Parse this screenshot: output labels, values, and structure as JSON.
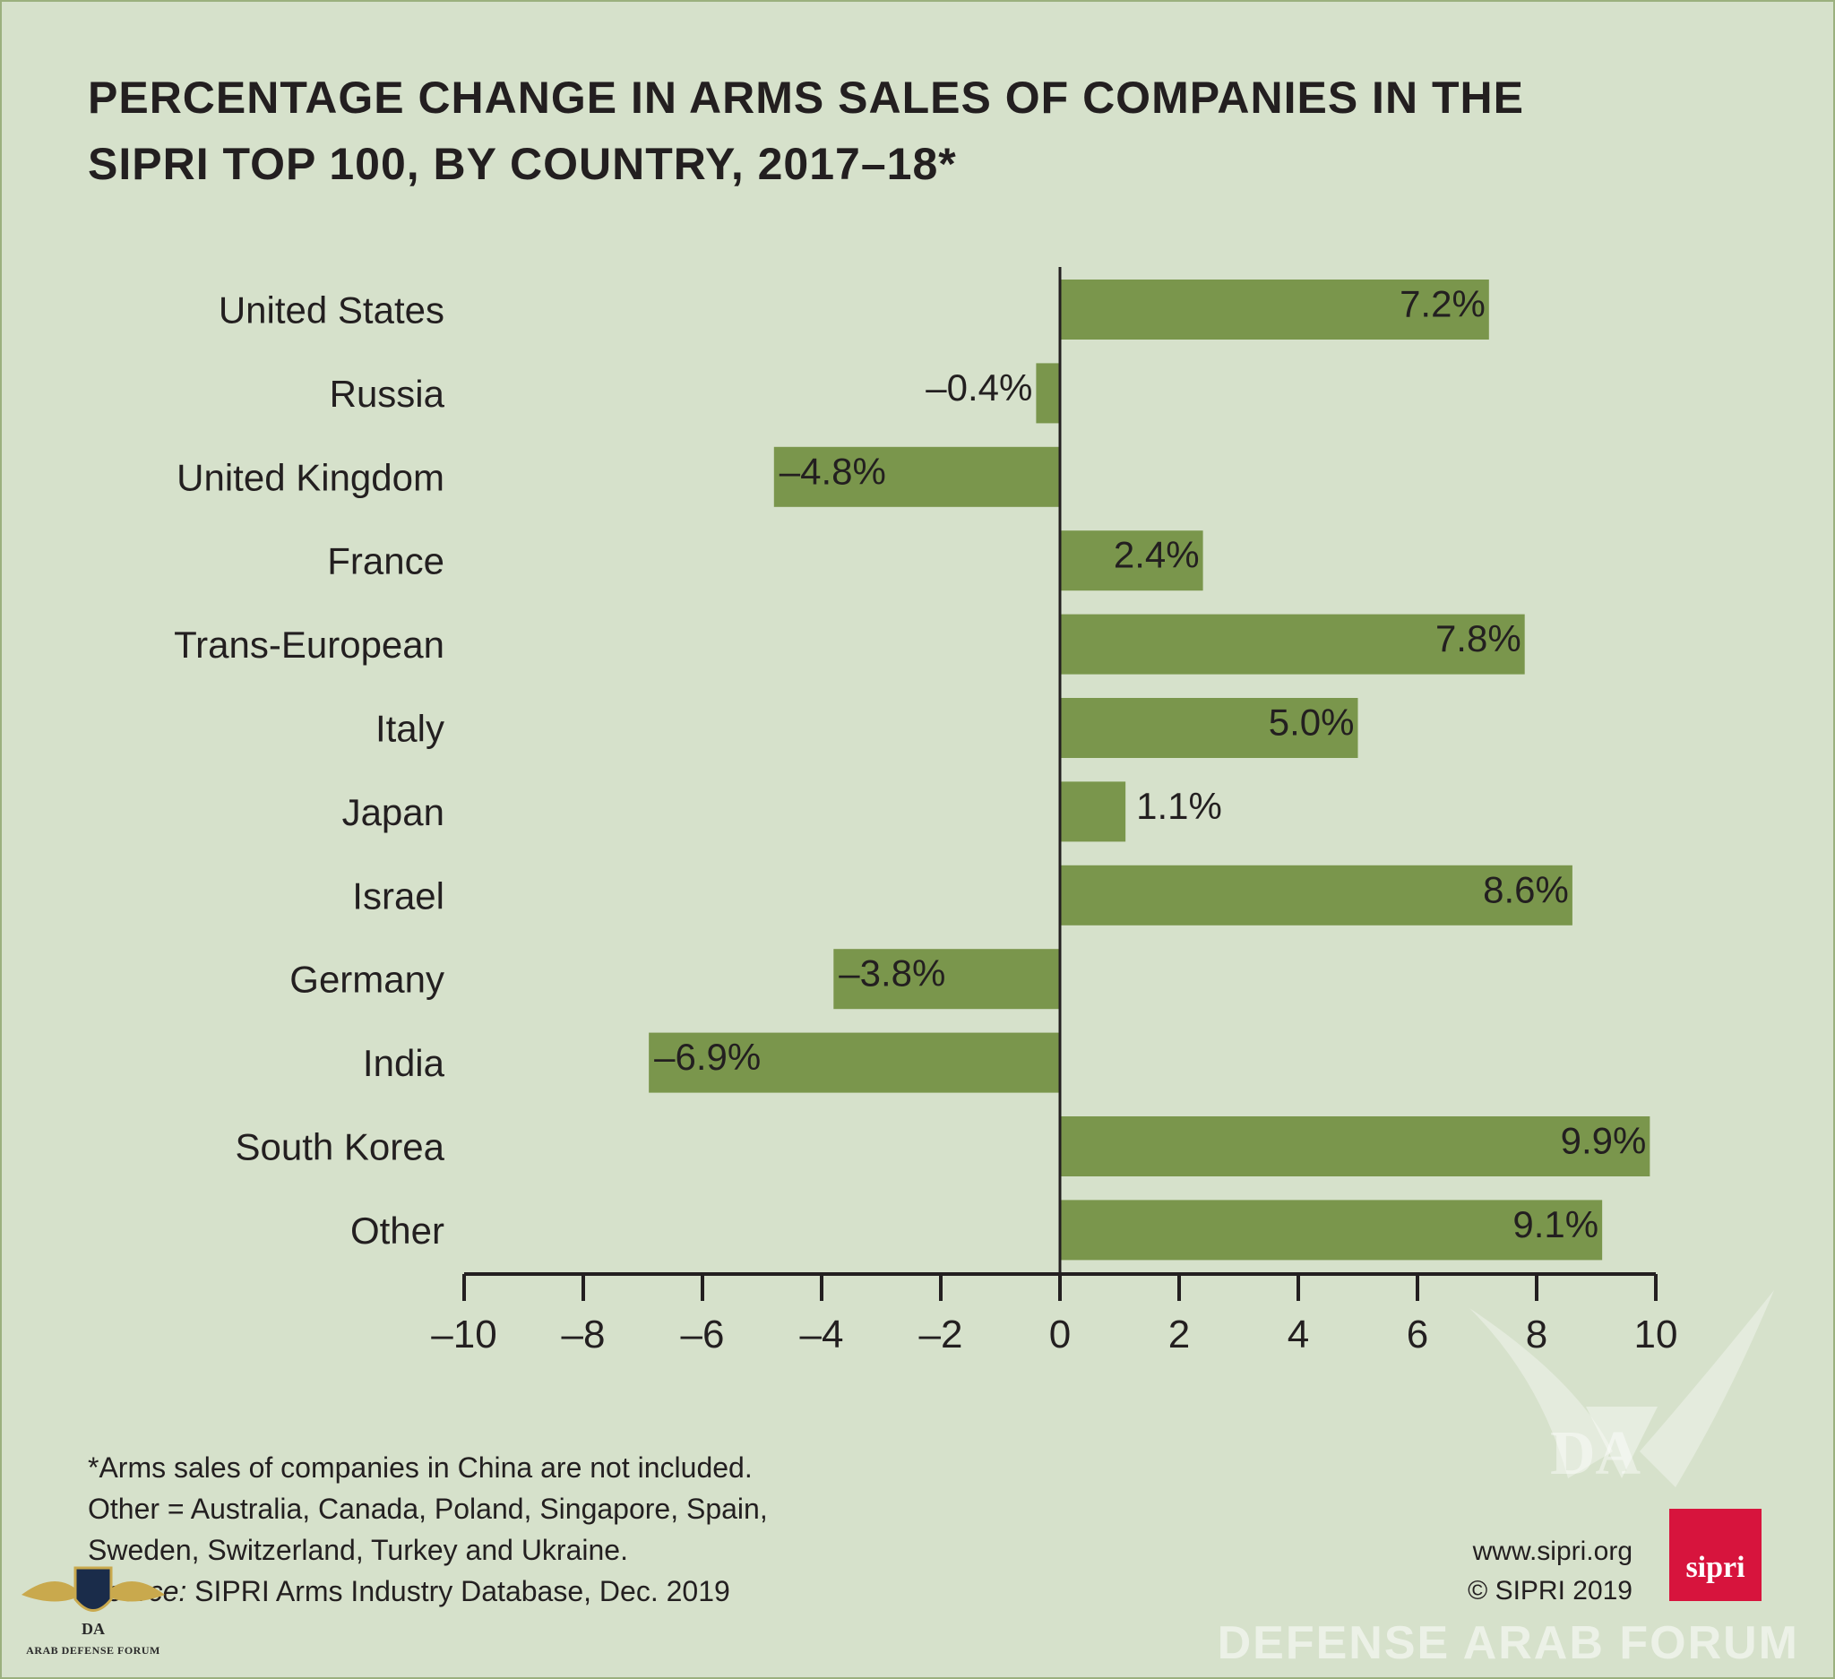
{
  "title": "PERCENTAGE CHANGE IN ARMS SALES OF COMPANIES IN THE SIPRI TOP 100, BY COUNTRY, 2017–18*",
  "chart_data": {
    "type": "bar",
    "orientation": "horizontal",
    "title": "PERCENTAGE CHANGE IN ARMS SALES OF COMPANIES IN THE SIPRI TOP 100, BY COUNTRY, 2017–18*",
    "categories": [
      "United States",
      "Russia",
      "United Kingdom",
      "France",
      "Trans-European",
      "Italy",
      "Japan",
      "Israel",
      "Germany",
      "India",
      "South Korea",
      "Other"
    ],
    "values": [
      7.2,
      -0.4,
      -4.8,
      2.4,
      7.8,
      5.0,
      1.1,
      8.6,
      -3.8,
      -6.9,
      9.9,
      9.1
    ],
    "data_labels": [
      "7.2%",
      "–0.4%",
      "–4.8%",
      "2.4%",
      "7.8%",
      "5.0%",
      "1.1%",
      "8.6%",
      "–3.8%",
      "–6.9%",
      "9.9%",
      "9.1%"
    ],
    "xlim": [
      -10,
      10
    ],
    "xticks": [
      -10,
      -8,
      -6,
      -4,
      -2,
      0,
      2,
      4,
      6,
      8,
      10
    ],
    "xtick_labels": [
      "–10",
      "–8",
      "–6",
      "–4",
      "–2",
      "0",
      "2",
      "4",
      "6",
      "8",
      "10"
    ],
    "xlabel": "",
    "ylabel": "",
    "grid": false,
    "bar_color": "#7a964c"
  },
  "footnotes": {
    "line1": "*Arms sales of companies in China are not included.",
    "line2": "Other = Australia, Canada, Poland, Singapore, Spain,",
    "line3": "Sweden, Switzerland, Turkey and Ukraine.",
    "source_label": "Source:",
    "source_text": " SIPRI Arms Industry Database, Dec. 2019"
  },
  "credits": {
    "url": "www.sipri.org",
    "copyright": "© SIPRI 2019",
    "logo_text": "sipri"
  },
  "watermark": {
    "site_text": "DEFENSE ARAB FORUM",
    "emblem_text": "DA",
    "corner_logo_initials": "DA",
    "corner_logo_text": "ARAB DEFENSE FORUM"
  }
}
